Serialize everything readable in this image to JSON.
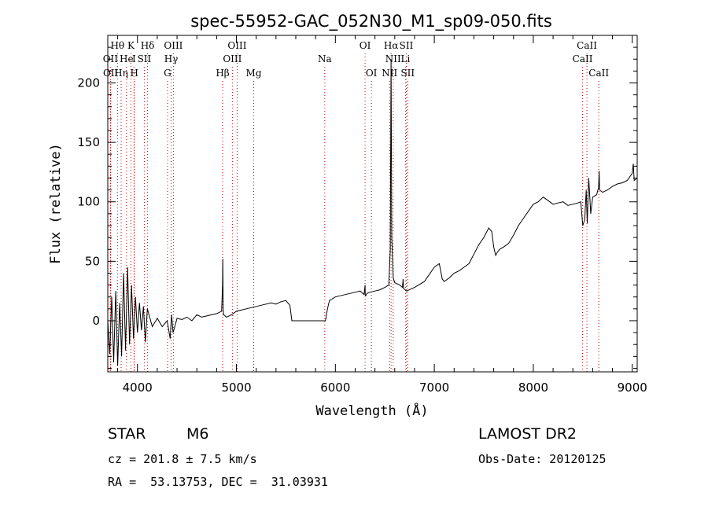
{
  "chart_data": {
    "type": "line",
    "title": "spec-55952-GAC_052N30_M1_sp09-050.fits",
    "xlabel": "Wavelength (Å)",
    "ylabel": "Flux (relative)",
    "xlim": [
      3700,
      9050
    ],
    "ylim": [
      -43,
      240
    ],
    "xticks": [
      4000,
      5000,
      6000,
      7000,
      8000,
      9000
    ],
    "yticks": [
      0,
      50,
      100,
      150,
      200
    ],
    "line_color": "#000000",
    "marker_color": "#cc0000",
    "series": [
      {
        "x": [
          3700,
          3720,
          3740,
          3760,
          3780,
          3800,
          3820,
          3840,
          3860,
          3880,
          3900,
          3920,
          3940,
          3960,
          3980,
          4000,
          4020,
          4040,
          4060,
          4080,
          4100,
          4150,
          4200,
          4250,
          4300,
          4330,
          4345,
          4360,
          4400,
          4450,
          4500,
          4550,
          4600,
          4650,
          4700,
          4750,
          4800,
          4850,
          4860,
          4862,
          4866,
          4870,
          4900,
          4950,
          5000,
          5050,
          5100,
          5150,
          5200,
          5250,
          5300,
          5350,
          5400,
          5450,
          5500,
          5540,
          5560,
          5580,
          5900,
          5920,
          5940,
          6000,
          6050,
          6100,
          6150,
          6200,
          6250,
          6290,
          6300,
          6302,
          6306,
          6320,
          6350,
          6400,
          6450,
          6500,
          6540,
          6555,
          6563,
          6570,
          6585,
          6600,
          6650,
          6678,
          6684,
          6690,
          6720,
          6800,
          6900,
          7000,
          7050,
          7080,
          7100,
          7150,
          7200,
          7250,
          7300,
          7350,
          7400,
          7450,
          7500,
          7550,
          7580,
          7600,
          7620,
          7640,
          7660,
          7700,
          7750,
          7800,
          7850,
          7900,
          7950,
          8000,
          8050,
          8100,
          8150,
          8200,
          8250,
          8300,
          8350,
          8400,
          8450,
          8480,
          8500,
          8520,
          8535,
          8545,
          8560,
          8580,
          8600,
          8640,
          8660,
          8665,
          8670,
          8700,
          8750,
          8800,
          8850,
          8900,
          8950,
          9000,
          9010,
          9020,
          9050
        ],
        "y": [
          0,
          -28,
          20,
          -35,
          25,
          -38,
          15,
          -30,
          40,
          -25,
          45,
          -20,
          30,
          -15,
          20,
          -10,
          15,
          -8,
          12,
          -18,
          10,
          -5,
          2,
          -5,
          0,
          -15,
          5,
          -10,
          2,
          1,
          3,
          0,
          5,
          3,
          4,
          5,
          6,
          8,
          30,
          52,
          10,
          5,
          3,
          5,
          8,
          9,
          10,
          11,
          12,
          13,
          14,
          15,
          14,
          16,
          17,
          13,
          0,
          0,
          0,
          10,
          17,
          20,
          21,
          22,
          23,
          24,
          25,
          22,
          30,
          22,
          21,
          23,
          24,
          25,
          26,
          28,
          30,
          60,
          220,
          70,
          36,
          32,
          30,
          28,
          35,
          27,
          25,
          28,
          33,
          45,
          48,
          35,
          33,
          36,
          40,
          42,
          45,
          48,
          56,
          64,
          70,
          78,
          75,
          62,
          55,
          58,
          60,
          62,
          65,
          72,
          80,
          86,
          92,
          98,
          100,
          104,
          101,
          98,
          99,
          100,
          97,
          98,
          99,
          100,
          80,
          85,
          110,
          82,
          120,
          90,
          104,
          106,
          112,
          126,
          110,
          108,
          110,
          113,
          115,
          116,
          118,
          124,
          132,
          118,
          120
        ]
      }
    ],
    "spectral_lines": [
      {
        "label": "Hθ",
        "wavelength": 3798,
        "row": 1
      },
      {
        "label": "K",
        "wavelength": 3934,
        "row": 1
      },
      {
        "label": "Hδ",
        "wavelength": 4102,
        "row": 1
      },
      {
        "label": "OIII",
        "wavelength": 4363,
        "row": 1
      },
      {
        "label": "OIII",
        "wavelength": 5007,
        "row": 1
      },
      {
        "label": "OI",
        "wavelength": 6300,
        "row": 1
      },
      {
        "label": "Hα",
        "wavelength": 6563,
        "row": 1
      },
      {
        "label": "SII",
        "wavelength": 6717,
        "row": 1
      },
      {
        "label": "CaII",
        "wavelength": 8542,
        "row": 1
      },
      {
        "label": "OII",
        "wavelength": 3727,
        "row": 2
      },
      {
        "label": "He",
        "wavelength": 3889,
        "row": 2
      },
      {
        "label": "I",
        "wavelength": 3965,
        "row": 2
      },
      {
        "label": "SII",
        "wavelength": 4069,
        "row": 2
      },
      {
        "label": "Hγ",
        "wavelength": 4340,
        "row": 2
      },
      {
        "label": "OIII",
        "wavelength": 4959,
        "row": 2
      },
      {
        "label": "Na",
        "wavelength": 5893,
        "row": 2
      },
      {
        "label": "NII",
        "wavelength": 6584,
        "row": 2
      },
      {
        "label": "Li",
        "wavelength": 6708,
        "row": 2
      },
      {
        "label": "CaII",
        "wavelength": 8498,
        "row": 2
      },
      {
        "label": "OII",
        "wavelength": 3729,
        "row": 3
      },
      {
        "label": "Hη",
        "wavelength": 3835,
        "row": 3
      },
      {
        "label": "H",
        "wavelength": 3968,
        "row": 3
      },
      {
        "label": "G",
        "wavelength": 4304,
        "row": 3
      },
      {
        "label": "Hβ",
        "wavelength": 4861,
        "row": 3
      },
      {
        "label": "Mg",
        "wavelength": 5175,
        "row": 3
      },
      {
        "label": "OI",
        "wavelength": 6364,
        "row": 3
      },
      {
        "label": "NII",
        "wavelength": 6548,
        "row": 3
      },
      {
        "label": "SII",
        "wavelength": 6731,
        "row": 3
      },
      {
        "label": "CaII",
        "wavelength": 8662,
        "row": 3
      }
    ]
  },
  "info": {
    "class": "STAR",
    "subclass": "M6",
    "survey": "LAMOST DR2",
    "cz": "cz = 201.8 ± 7.5 km/s",
    "obs_date": "Obs-Date: 20120125",
    "radec": "RA =  53.13753, DEC =  31.03931"
  }
}
